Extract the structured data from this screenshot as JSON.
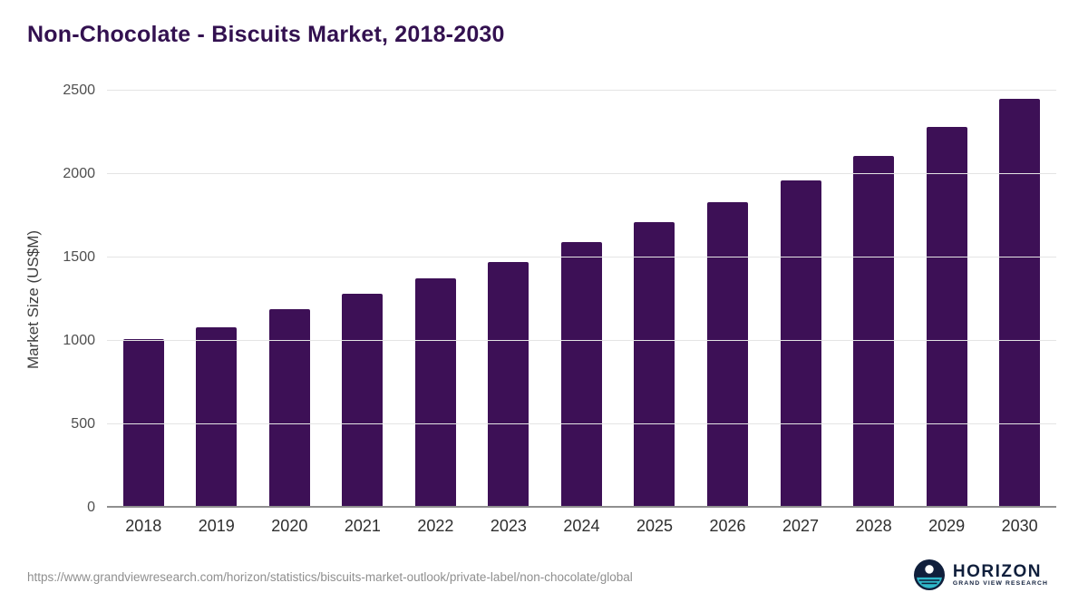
{
  "title": "Non-Chocolate - Biscuits Market, 2018-2030",
  "footer": {
    "url": "https://www.grandviewresearch.com/horizon/statistics/biscuits-market-outlook/private-label/non-chocolate/global",
    "logo_title": "HORIZON",
    "logo_subtitle": "GRAND VIEW RESEARCH"
  },
  "colors": {
    "bar": "#3d1056",
    "title": "#331150",
    "gridline": "#e4e4e4",
    "axis_text": "#4f4f4f",
    "logo_navy": "#101f3c",
    "logo_teal": "#2fb7c9"
  },
  "chart_data": {
    "type": "bar",
    "title": "Non-Chocolate - Biscuits Market, 2018-2030",
    "categories": [
      "2018",
      "2019",
      "2020",
      "2021",
      "2022",
      "2023",
      "2024",
      "2025",
      "2026",
      "2027",
      "2028",
      "2029",
      "2030"
    ],
    "values": [
      1010,
      1080,
      1190,
      1285,
      1375,
      1475,
      1590,
      1710,
      1830,
      1960,
      2110,
      2280,
      2450
    ],
    "xlabel": "",
    "ylabel": "Market Size (US$M)",
    "ylim": [
      0,
      2500
    ],
    "yticks": [
      0,
      500,
      1000,
      1500,
      2000,
      2500
    ],
    "grid": true,
    "legend": "none",
    "bar_color": "#3d1056"
  }
}
